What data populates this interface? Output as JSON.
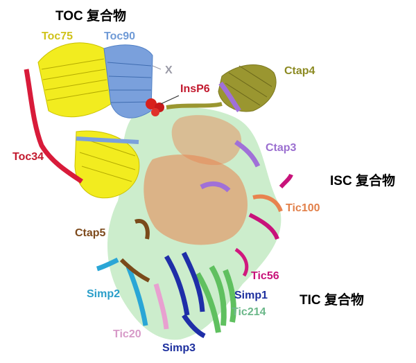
{
  "complexes": {
    "toc": "TOC 复合物",
    "isc": "ISC 复合物",
    "tic": "TIC 复合物"
  },
  "labels": {
    "toc75": {
      "text": "Toc75",
      "color": "#cfc21a"
    },
    "toc90": {
      "text": "Toc90",
      "color": "#6f9ad6"
    },
    "x": {
      "text": "X",
      "color": "#9a9aa6"
    },
    "insp6": {
      "text": "InsP6",
      "color": "#c2192e"
    },
    "ctap4": {
      "text": "Ctap4",
      "color": "#8c8a22"
    },
    "toc34": {
      "text": "Toc34",
      "color": "#c2192e"
    },
    "ctap3": {
      "text": "Ctap3",
      "color": "#9b6fd0"
    },
    "tic100": {
      "text": "Tic100",
      "color": "#e2804a"
    },
    "ctap5": {
      "text": "Ctap5",
      "color": "#7d4a1c"
    },
    "tic56": {
      "text": "Tic56",
      "color": "#c8127a"
    },
    "simp2": {
      "text": "Simp2",
      "color": "#2a9ec9"
    },
    "simp1": {
      "text": "Simp1",
      "color": "#1d2f9e"
    },
    "tic214": {
      "text": "Tic214",
      "color": "#6cb88a"
    },
    "tic20": {
      "text": "Tic20",
      "color": "#d79ac8"
    },
    "simp3": {
      "text": "Simp3",
      "color": "#1d2f9e"
    }
  },
  "colors": {
    "toc75": "#f2ec1f",
    "toc90": "#7aa0dc",
    "toc34": "#d81b3a",
    "ctap4": "#9a9630",
    "ctap3": "#a070d8",
    "tic100": "#e8834f",
    "tic214": "#8fd88f",
    "simp": "#1f2ea8",
    "simp2": "#2aa6d6",
    "tic20": "#e8a0d0",
    "tic56": "#d0187e",
    "ctap5": "#7a4a1a",
    "insp6": "#d8201c"
  }
}
